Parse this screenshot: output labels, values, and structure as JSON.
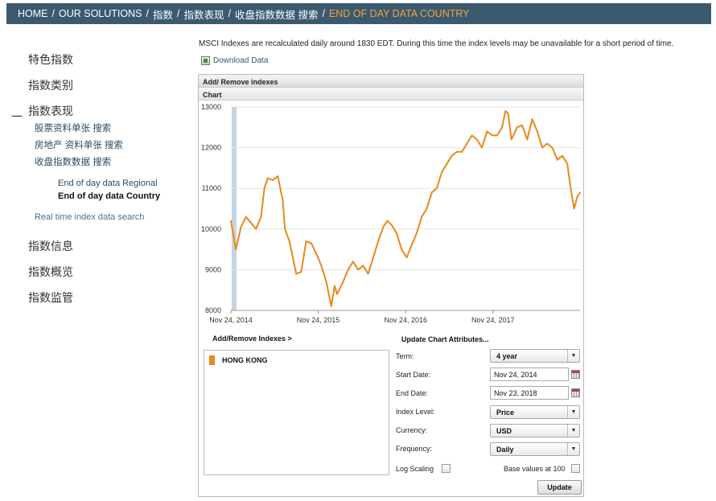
{
  "breadcrumb": {
    "items": [
      "HOME",
      "OUR SOLUTIONS",
      "指数",
      "指数表现",
      "收盘指数数据 搜索"
    ],
    "current": "END OF DAY DATA COUNTRY",
    "separator": "/"
  },
  "sidebar": {
    "items": [
      "特色指数",
      "指数类别",
      "指数表现",
      "指数信息",
      "指数概览",
      "指数监管"
    ],
    "expanded_marker": "一",
    "sub_items": [
      "股票资料单张 搜索",
      "房地产 资料单张 搜索",
      "收盘指数数据 搜索"
    ],
    "sub_sub_items": [
      "End of day data Regional",
      "End of day data Country"
    ],
    "realtime_link": "Real time index data search"
  },
  "main": {
    "notice": "MSCI Indexes are recalculated daily around 1830 EDT. During this time the index levels may be unavailable for a short period of time.",
    "download_label": "Download Data"
  },
  "panel": {
    "header": "Add/ Remove indexes",
    "chart_tab": "Chart",
    "add_remove_label": "Add/Remove Indexes >",
    "update_title": "Update Chart Attributes...",
    "indexes": [
      {
        "name": "HONG KONG",
        "color": "#e8891c"
      }
    ],
    "fields": {
      "term": {
        "label": "Term:",
        "value": "4 year"
      },
      "start_date": {
        "label": "Start Date:",
        "value": "Nov 24, 2014"
      },
      "end_date": {
        "label": "End Date:",
        "value": "Nov 23, 2018"
      },
      "index_level": {
        "label": "Index Level:",
        "value": "Price"
      },
      "currency": {
        "label": "Currency:",
        "value": "USD"
      },
      "frequency": {
        "label": "Frequency:",
        "value": "Daily"
      },
      "log_scaling": {
        "label": "Log Scaling",
        "checked": false
      },
      "base_values": {
        "label": "Base values at 100",
        "checked": false
      }
    },
    "update_button": "Update"
  },
  "chart_data": {
    "type": "line",
    "title": "",
    "xlabel": "",
    "ylabel": "",
    "x_ticks": [
      "Nov 24, 2014",
      "Nov 24, 2015",
      "Nov 24, 2016",
      "Nov 24, 2017"
    ],
    "y_ticks": [
      8000,
      9000,
      10000,
      11000,
      12000,
      13000
    ],
    "ylim": [
      8000,
      13000
    ],
    "grid": true,
    "series": [
      {
        "name": "HONG KONG",
        "color": "#e8891c",
        "x": [
          "2014-11-24",
          "2014-12-15",
          "2015-01-05",
          "2015-01-26",
          "2015-02-16",
          "2015-03-09",
          "2015-03-30",
          "2015-04-13",
          "2015-04-27",
          "2015-05-18",
          "2015-06-08",
          "2015-06-29",
          "2015-07-08",
          "2015-07-27",
          "2015-08-24",
          "2015-09-14",
          "2015-10-05",
          "2015-10-26",
          "2015-11-16",
          "2015-12-07",
          "2015-12-28",
          "2016-01-18",
          "2016-02-01",
          "2016-02-11",
          "2016-03-07",
          "2016-03-28",
          "2016-04-18",
          "2016-05-09",
          "2016-05-30",
          "2016-06-20",
          "2016-07-11",
          "2016-08-01",
          "2016-08-22",
          "2016-09-08",
          "2016-09-26",
          "2016-10-17",
          "2016-11-07",
          "2016-11-28",
          "2016-12-19",
          "2017-01-09",
          "2017-01-30",
          "2017-02-20",
          "2017-03-13",
          "2017-04-03",
          "2017-04-24",
          "2017-05-15",
          "2017-06-05",
          "2017-06-26",
          "2017-07-17",
          "2017-08-07",
          "2017-08-28",
          "2017-09-18",
          "2017-10-09",
          "2017-10-30",
          "2017-11-20",
          "2017-12-11",
          "2018-01-01",
          "2018-01-15",
          "2018-01-26",
          "2018-02-09",
          "2018-03-05",
          "2018-03-26",
          "2018-04-16",
          "2018-05-07",
          "2018-05-28",
          "2018-06-18",
          "2018-07-09",
          "2018-07-30",
          "2018-08-20",
          "2018-09-10",
          "2018-10-01",
          "2018-10-15",
          "2018-10-29",
          "2018-11-12",
          "2018-11-23"
        ],
        "values": [
          10200,
          9500,
          10050,
          10300,
          10150,
          10000,
          10300,
          11000,
          11250,
          11200,
          11300,
          10700,
          10000,
          9700,
          8900,
          8950,
          9700,
          9650,
          9400,
          9100,
          8700,
          8100,
          8600,
          8400,
          8700,
          9000,
          9200,
          9000,
          9100,
          8900,
          9300,
          9700,
          10050,
          10200,
          10100,
          9900,
          9500,
          9300,
          9600,
          9900,
          10300,
          10500,
          10900,
          11000,
          11400,
          11600,
          11800,
          11900,
          11900,
          12100,
          12300,
          12200,
          12000,
          12400,
          12300,
          12300,
          12500,
          12900,
          12850,
          12200,
          12500,
          12550,
          12200,
          12700,
          12400,
          12000,
          12100,
          12000,
          11700,
          11800,
          11600,
          11000,
          10500,
          10800,
          10900
        ]
      }
    ]
  }
}
